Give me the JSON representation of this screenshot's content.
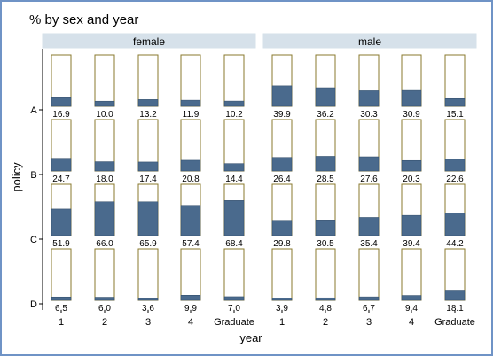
{
  "chart_data": {
    "type": "bar",
    "title": "% by sex and year",
    "xlabel": "year",
    "ylabel": "policy",
    "panels": [
      "female",
      "male"
    ],
    "categories": [
      "1",
      "2",
      "3",
      "4",
      "Graduate"
    ],
    "rows": [
      "A",
      "B",
      "C",
      "D"
    ],
    "ylim": [
      0,
      100
    ],
    "bar_color": "#4a6a8d",
    "cells": {
      "female": {
        "A": [
          16.9,
          10.0,
          13.2,
          11.9,
          10.2
        ],
        "B": [
          24.7,
          18.0,
          17.4,
          20.8,
          14.4
        ],
        "C": [
          51.9,
          66.0,
          65.9,
          57.4,
          68.4
        ],
        "D": [
          6.5,
          6.0,
          3.6,
          9.9,
          7.0
        ]
      },
      "male": {
        "A": [
          39.9,
          36.2,
          30.3,
          30.9,
          15.1
        ],
        "B": [
          26.4,
          28.5,
          27.6,
          20.3,
          22.6
        ],
        "C": [
          29.8,
          30.5,
          35.4,
          39.4,
          44.2
        ],
        "D": [
          3.9,
          4.8,
          6.7,
          9.4,
          18.1
        ]
      }
    },
    "value_labels": {
      "female": {
        "A": [
          "16.9",
          "10.0",
          "13.2",
          "11.9",
          "10.2"
        ],
        "B": [
          "24.7",
          "18.0",
          "17.4",
          "20.8",
          "14.4"
        ],
        "C": [
          "51.9",
          "66.0",
          "65.9",
          "57.4",
          "68.4"
        ],
        "D": [
          "6.5",
          "6.0",
          "3.6",
          "9.9",
          "7.0"
        ]
      },
      "male": {
        "A": [
          "39.9",
          "36.2",
          "30.3",
          "30.9",
          "15.1"
        ],
        "B": [
          "26.4",
          "28.5",
          "27.6",
          "20.3",
          "22.6"
        ],
        "C": [
          "29.8",
          "30.5",
          "35.4",
          "39.4",
          "44.2"
        ],
        "D": [
          "3.9",
          "4.8",
          "6.7",
          "9.4",
          "18.1"
        ]
      }
    }
  }
}
